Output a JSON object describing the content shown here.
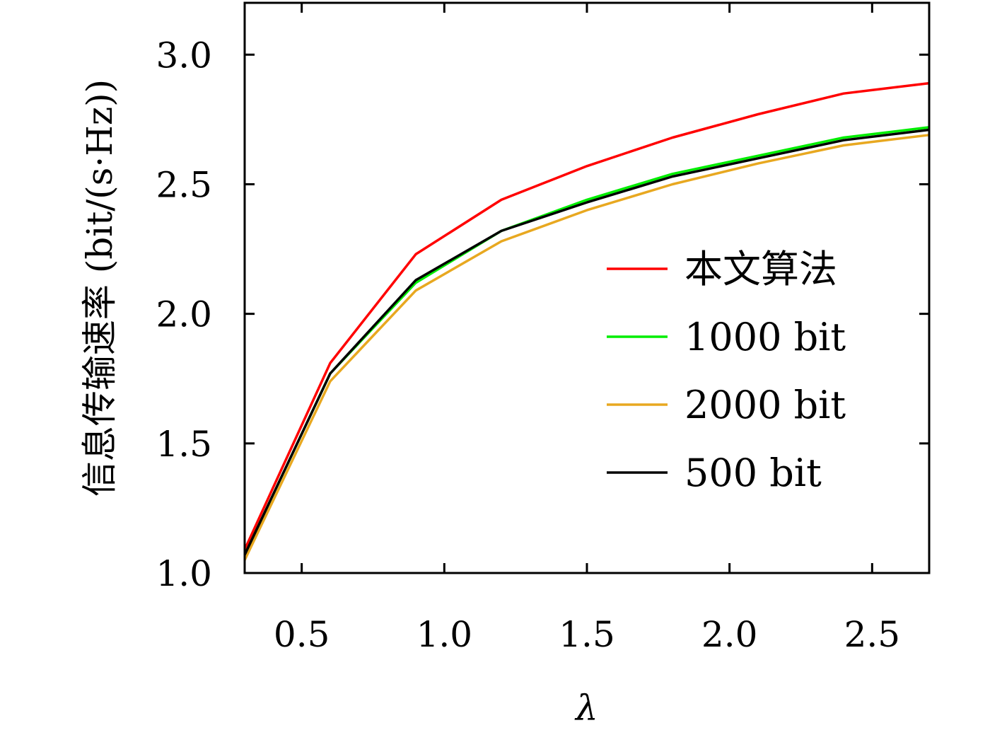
{
  "chart_data": {
    "type": "line",
    "xlabel": "λ",
    "ylabel": "信息传输速率 (bit/(s·Hz))",
    "xlim": [
      0.3,
      2.7
    ],
    "ylim": [
      1.0,
      3.2
    ],
    "xticks": [
      "0.5",
      "1.0",
      "1.5",
      "2.0",
      "2.5"
    ],
    "yticks": [
      "1.0",
      "1.5",
      "2.0",
      "2.5",
      "3.0"
    ],
    "grid": false,
    "legend_position": "center-right",
    "series": [
      {
        "name": "本文算法",
        "color": "#ff0000",
        "x": [
          0.3,
          0.6,
          0.9,
          1.2,
          1.5,
          1.8,
          2.1,
          2.4,
          2.7
        ],
        "y": [
          1.09,
          1.81,
          2.23,
          2.44,
          2.57,
          2.68,
          2.77,
          2.85,
          2.89
        ]
      },
      {
        "name": "1000 bit",
        "color": "#00ee00",
        "x": [
          0.3,
          0.6,
          0.9,
          1.2,
          1.5,
          1.8,
          2.1,
          2.4,
          2.7
        ],
        "y": [
          1.07,
          1.77,
          2.12,
          2.32,
          2.44,
          2.54,
          2.61,
          2.68,
          2.72
        ]
      },
      {
        "name": "2000 bit",
        "color": "#e8a820",
        "x": [
          0.3,
          0.6,
          0.9,
          1.2,
          1.5,
          1.8,
          2.1,
          2.4,
          2.7
        ],
        "y": [
          1.05,
          1.74,
          2.09,
          2.28,
          2.4,
          2.5,
          2.58,
          2.65,
          2.69
        ]
      },
      {
        "name": "500 bit",
        "color": "#000000",
        "x": [
          0.3,
          0.6,
          0.9,
          1.2,
          1.5,
          1.8,
          2.1,
          2.4,
          2.7
        ],
        "y": [
          1.07,
          1.77,
          2.13,
          2.32,
          2.43,
          2.53,
          2.6,
          2.67,
          2.71
        ]
      }
    ]
  }
}
